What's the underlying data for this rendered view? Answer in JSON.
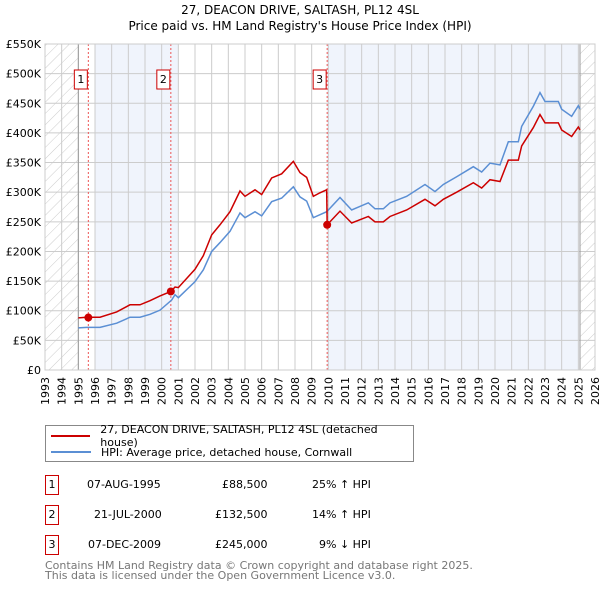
{
  "chart_data": {
    "type": "line",
    "title": "27, DEACON DRIVE, SALTASH, PL12 4SL",
    "subtitle": "Price paid vs. HM Land Registry's House Price Index (HPI)",
    "xlim": [
      1993,
      2026
    ],
    "ylim": [
      0,
      550000
    ],
    "x_ticks": [
      "1993",
      "1994",
      "1995",
      "1996",
      "1997",
      "1998",
      "1999",
      "2000",
      "2001",
      "2002",
      "2003",
      "2004",
      "2005",
      "2006",
      "2007",
      "2008",
      "2009",
      "2010",
      "2011",
      "2012",
      "2013",
      "2014",
      "2015",
      "2016",
      "2017",
      "2018",
      "2019",
      "2020",
      "2021",
      "2022",
      "2023",
      "2024",
      "2025",
      "2026"
    ],
    "y_ticks": [
      {
        "v": 0,
        "label": "£0"
      },
      {
        "v": 50000,
        "label": "£50K"
      },
      {
        "v": 100000,
        "label": "£100K"
      },
      {
        "v": 150000,
        "label": "£150K"
      },
      {
        "v": 200000,
        "label": "£200K"
      },
      {
        "v": 250000,
        "label": "£250K"
      },
      {
        "v": 300000,
        "label": "£300K"
      },
      {
        "v": 350000,
        "label": "£350K"
      },
      {
        "v": 400000,
        "label": "£400K"
      },
      {
        "v": 450000,
        "label": "£450K"
      },
      {
        "v": 500000,
        "label": "£500K"
      },
      {
        "v": 550000,
        "label": "£550K"
      }
    ],
    "grid": true,
    "hatched_ranges": [
      [
        1993,
        1995.0
      ],
      [
        2025.1,
        2026
      ]
    ],
    "shaded_ranges": [
      [
        1996,
        2001
      ],
      [
        2009.93,
        2025.05
      ]
    ],
    "series": [
      {
        "name": "27, DEACON DRIVE, SALTASH, PL12 4SL (detached house)",
        "color": "#cc0000",
        "points": [
          [
            1995.0,
            88
          ],
          [
            1995.5,
            89
          ],
          [
            1996.3,
            89
          ],
          [
            1997.3,
            98
          ],
          [
            1998.1,
            110
          ],
          [
            1998.7,
            110
          ],
          [
            1999.3,
            117
          ],
          [
            1999.9,
            125
          ],
          [
            2000.55,
            132.5
          ],
          [
            2000.8,
            140
          ],
          [
            2001.0,
            139
          ],
          [
            2002.0,
            170
          ],
          [
            2002.5,
            193
          ],
          [
            2003.0,
            228
          ],
          [
            2003.5,
            245
          ],
          [
            2004.1,
            267
          ],
          [
            2004.7,
            302
          ],
          [
            2005.0,
            293
          ],
          [
            2005.6,
            304
          ],
          [
            2006.0,
            296
          ],
          [
            2006.6,
            324
          ],
          [
            2007.2,
            331
          ],
          [
            2007.9,
            352
          ],
          [
            2008.3,
            333
          ],
          [
            2008.7,
            325
          ],
          [
            2009.1,
            293
          ],
          [
            2009.5,
            299
          ],
          [
            2009.9,
            304
          ],
          [
            2009.93,
            245
          ],
          [
            2010.7,
            268
          ],
          [
            2011.4,
            248
          ],
          [
            2012.4,
            259
          ],
          [
            2012.8,
            250
          ],
          [
            2013.3,
            250
          ],
          [
            2013.7,
            259
          ],
          [
            2014.7,
            270
          ],
          [
            2015.8,
            288
          ],
          [
            2016.4,
            277
          ],
          [
            2016.9,
            288
          ],
          [
            2017.7,
            300
          ],
          [
            2018.7,
            316
          ],
          [
            2019.2,
            307
          ],
          [
            2019.7,
            321
          ],
          [
            2020.3,
            318
          ],
          [
            2020.8,
            354
          ],
          [
            2021.4,
            354
          ],
          [
            2021.6,
            378
          ],
          [
            2022.3,
            409
          ],
          [
            2022.7,
            431
          ],
          [
            2023.0,
            417
          ],
          [
            2023.8,
            417
          ],
          [
            2024.0,
            405
          ],
          [
            2024.6,
            394
          ],
          [
            2025.0,
            410
          ],
          [
            2025.1,
            405
          ]
        ]
      },
      {
        "name": "HPI: Average price, detached house, Cornwall",
        "color": "#5b8fd4",
        "points": [
          [
            1995.0,
            71
          ],
          [
            1995.5,
            72
          ],
          [
            1996.3,
            72
          ],
          [
            1997.3,
            79
          ],
          [
            1998.1,
            89
          ],
          [
            1998.7,
            89
          ],
          [
            1999.3,
            94
          ],
          [
            1999.9,
            101
          ],
          [
            2000.6,
            118
          ],
          [
            2000.8,
            127
          ],
          [
            2001.0,
            122
          ],
          [
            2002.0,
            149
          ],
          [
            2002.5,
            169
          ],
          [
            2003.0,
            200
          ],
          [
            2003.5,
            215
          ],
          [
            2004.1,
            234
          ],
          [
            2004.7,
            265
          ],
          [
            2005.0,
            257
          ],
          [
            2005.6,
            267
          ],
          [
            2006.0,
            260
          ],
          [
            2006.6,
            284
          ],
          [
            2007.2,
            290
          ],
          [
            2007.9,
            309
          ],
          [
            2008.3,
            292
          ],
          [
            2008.7,
            285
          ],
          [
            2009.1,
            257
          ],
          [
            2009.5,
            262
          ],
          [
            2009.9,
            267
          ],
          [
            2010.7,
            291
          ],
          [
            2011.4,
            270
          ],
          [
            2012.4,
            282
          ],
          [
            2012.8,
            272
          ],
          [
            2013.3,
            272
          ],
          [
            2013.7,
            282
          ],
          [
            2014.7,
            293
          ],
          [
            2015.8,
            313
          ],
          [
            2016.4,
            301
          ],
          [
            2016.9,
            313
          ],
          [
            2017.7,
            326
          ],
          [
            2018.7,
            343
          ],
          [
            2019.2,
            334
          ],
          [
            2019.7,
            349
          ],
          [
            2020.3,
            346
          ],
          [
            2020.8,
            385
          ],
          [
            2021.4,
            385
          ],
          [
            2021.6,
            411
          ],
          [
            2022.3,
            445
          ],
          [
            2022.7,
            468
          ],
          [
            2023.0,
            453
          ],
          [
            2023.8,
            453
          ],
          [
            2024.0,
            440
          ],
          [
            2024.6,
            428
          ],
          [
            2025.0,
            446
          ],
          [
            2025.1,
            440
          ]
        ]
      }
    ],
    "sales": [
      {
        "id": "1",
        "x": 1995.6,
        "value": 88500
      },
      {
        "id": "2",
        "x": 2000.55,
        "value": 132500
      },
      {
        "id": "3",
        "x": 2009.93,
        "value": 245000
      }
    ]
  },
  "legend": {
    "items": [
      {
        "label": "27, DEACON DRIVE, SALTASH, PL12 4SL (detached house)",
        "color": "#cc0000"
      },
      {
        "label": "HPI: Average price, detached house, Cornwall",
        "color": "#5b8fd4"
      }
    ]
  },
  "table": [
    {
      "id": "1",
      "date": "07-AUG-1995",
      "price": "£88,500",
      "hpi": "25% ↑ HPI"
    },
    {
      "id": "2",
      "date": "21-JUL-2000",
      "price": "£132,500",
      "hpi": "14% ↑ HPI"
    },
    {
      "id": "3",
      "date": "07-DEC-2009",
      "price": "£245,000",
      "hpi": "9% ↓ HPI"
    }
  ],
  "footer": {
    "line1": "Contains HM Land Registry data © Crown copyright and database right 2025.",
    "line2": "This data is licensed under the Open Government Licence v3.0."
  }
}
